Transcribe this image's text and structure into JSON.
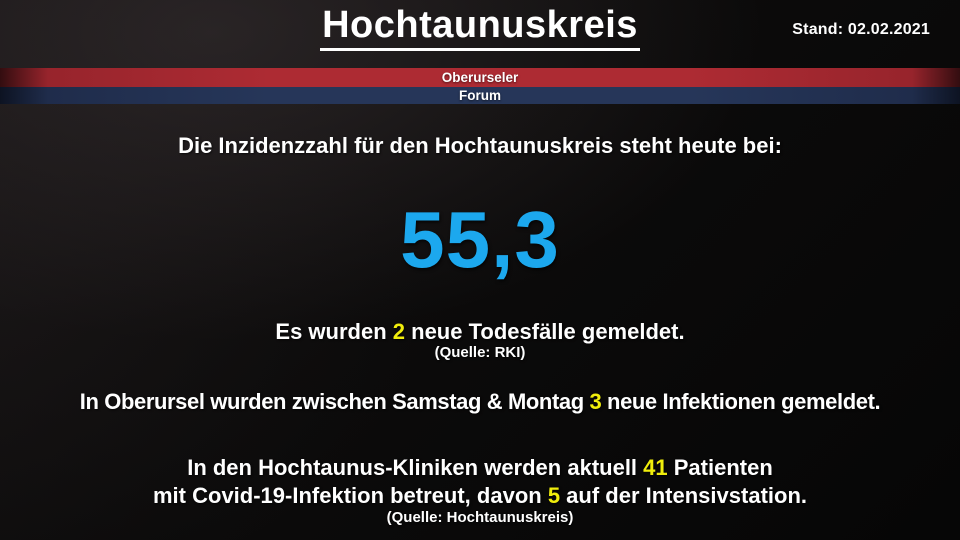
{
  "header": {
    "title": "Hochtaunuskreis",
    "stand_label": "Stand: 02.02.2021"
  },
  "banner": {
    "top_label": "Oberurseler",
    "bottom_label": "Forum"
  },
  "main": {
    "intro": "Die Inzidenzzahl für den Hochtaunuskreis steht heute bei:",
    "incidence_value": "55,3",
    "deaths": {
      "prefix": "Es wurden ",
      "value": "2",
      "suffix": " neue Todesfälle gemeldet."
    },
    "deaths_source": "(Quelle: RKI)",
    "oberursel": {
      "prefix": "In Oberursel wurden zwischen Samstag & Montag ",
      "value": "3",
      "suffix": " neue Infektionen gemeldet."
    },
    "clinics_line1": {
      "prefix": "In den Hochtaunus-Kliniken werden aktuell ",
      "value": "41",
      "suffix": " Patienten"
    },
    "clinics_line2": {
      "prefix": "mit Covid-19-Infektion betreut, davon ",
      "value": "5",
      "suffix": " auf der Intensivstation."
    },
    "clinics_source": "(Quelle: Hochtaunuskreis)"
  },
  "colors": {
    "accent_blue": "#1CA8EE",
    "accent_yellow": "#F0ED0C",
    "banner_red": "#AD2B33",
    "banner_blue": "#263659",
    "background": "#0B0A0A",
    "text": "#FFFFFF"
  }
}
